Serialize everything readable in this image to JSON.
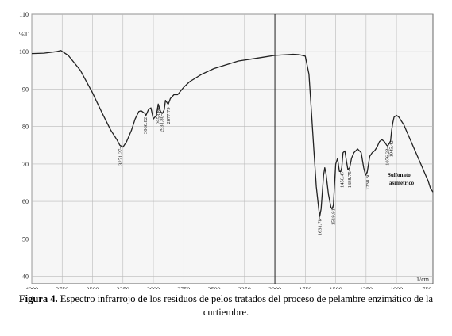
{
  "caption": {
    "label": "Figura 4.",
    "text": " Espectro infrarrojo de los residuos de pelos tratados del proceso de pelambre enzimático de la curtiembre."
  },
  "chart_data": {
    "type": "line",
    "title": "",
    "xlabel": "1/cm",
    "ylabel": "%T",
    "xlim": [
      4000,
      700
    ],
    "ylim": [
      38,
      110
    ],
    "x_ticks": [
      4000,
      3750,
      3500,
      3250,
      3000,
      2750,
      2500,
      2250,
      2000,
      1750,
      1500,
      1250,
      1000,
      750
    ],
    "y_ticks": [
      40,
      50,
      60,
      70,
      80,
      90,
      100,
      110
    ],
    "grid": true,
    "series": [
      {
        "x": [
          4000,
          3900,
          3800,
          3760,
          3700,
          3600,
          3500,
          3420,
          3350,
          3300,
          3275,
          3250,
          3220,
          3180,
          3150,
          3120,
          3100,
          3070,
          3060,
          3040,
          3020,
          3000,
          2975,
          2960,
          2940,
          2925,
          2910,
          2900,
          2880,
          2877,
          2860,
          2830,
          2800,
          2750,
          2700,
          2600,
          2500,
          2400,
          2300,
          2200,
          2100,
          2000,
          1900,
          1850,
          1800,
          1750,
          1720,
          1700,
          1680,
          1660,
          1640,
          1631,
          1620,
          1600,
          1590,
          1580,
          1560,
          1540,
          1530,
          1519,
          1510,
          1500,
          1485,
          1470,
          1459,
          1450,
          1440,
          1425,
          1410,
          1400,
          1385,
          1370,
          1350,
          1320,
          1290,
          1270,
          1254,
          1240,
          1220,
          1200,
          1180,
          1160,
          1140,
          1120,
          1100,
          1080,
          1072,
          1060,
          1050,
          1048,
          1040,
          1030,
          1020,
          1000,
          980,
          960,
          940,
          920,
          900,
          880,
          860,
          840,
          820,
          800,
          780,
          760,
          740,
          720,
          700
        ],
        "y": [
          99.5,
          99.6,
          100,
          100.3,
          99,
          95,
          89,
          83.5,
          79,
          76.5,
          75,
          74.5,
          76,
          79,
          82,
          84,
          84.2,
          83.5,
          83,
          84.5,
          85,
          82,
          83,
          86,
          84,
          83.5,
          84.5,
          87,
          86,
          86,
          87.5,
          88.5,
          88.5,
          90.5,
          92,
          94,
          95.5,
          96.5,
          97.5,
          98,
          98.5,
          99,
          99.2,
          99.3,
          99.2,
          98.8,
          94,
          84,
          74,
          64,
          58,
          56,
          58,
          67,
          69,
          67.5,
          62,
          58.5,
          58,
          59,
          64,
          70,
          71.5,
          68,
          68,
          69,
          73,
          73.5,
          70.5,
          68.5,
          69,
          71.5,
          73,
          74,
          73,
          69,
          67,
          68,
          72,
          73,
          73.5,
          74.5,
          76,
          76.5,
          76,
          75,
          74.8,
          75.5,
          76,
          76.2,
          79,
          81,
          82.5,
          83,
          82.5,
          81.5,
          80.5,
          79,
          77.5,
          76,
          74.5,
          73,
          71.5,
          70,
          68.5,
          67,
          65.5,
          63.5,
          62.5
        ]
      }
    ],
    "peak_labels": [
      {
        "x": 3271.27,
        "text": "3271.27"
      },
      {
        "x": 3066.82,
        "text": "3066.82"
      },
      {
        "x": 2958.8,
        "text": "2958.80"
      },
      {
        "x": 2931.8,
        "text": "2931.80"
      },
      {
        "x": 2877.79,
        "text": "2877.79"
      },
      {
        "x": 1631.78,
        "text": "1631.78"
      },
      {
        "x": 1519.91,
        "text": "1519.91"
      },
      {
        "x": 1450.47,
        "text": "1450.47"
      },
      {
        "x": 1388.75,
        "text": "1388.75"
      },
      {
        "x": 1238.3,
        "text": "1238.30"
      },
      {
        "x": 1076.28,
        "text": "1076.28"
      },
      {
        "x": 1045.42,
        "text": "1045.42"
      }
    ],
    "annotation": {
      "text_line1": "Sulfonato",
      "text_line2": "asimétrico"
    }
  }
}
